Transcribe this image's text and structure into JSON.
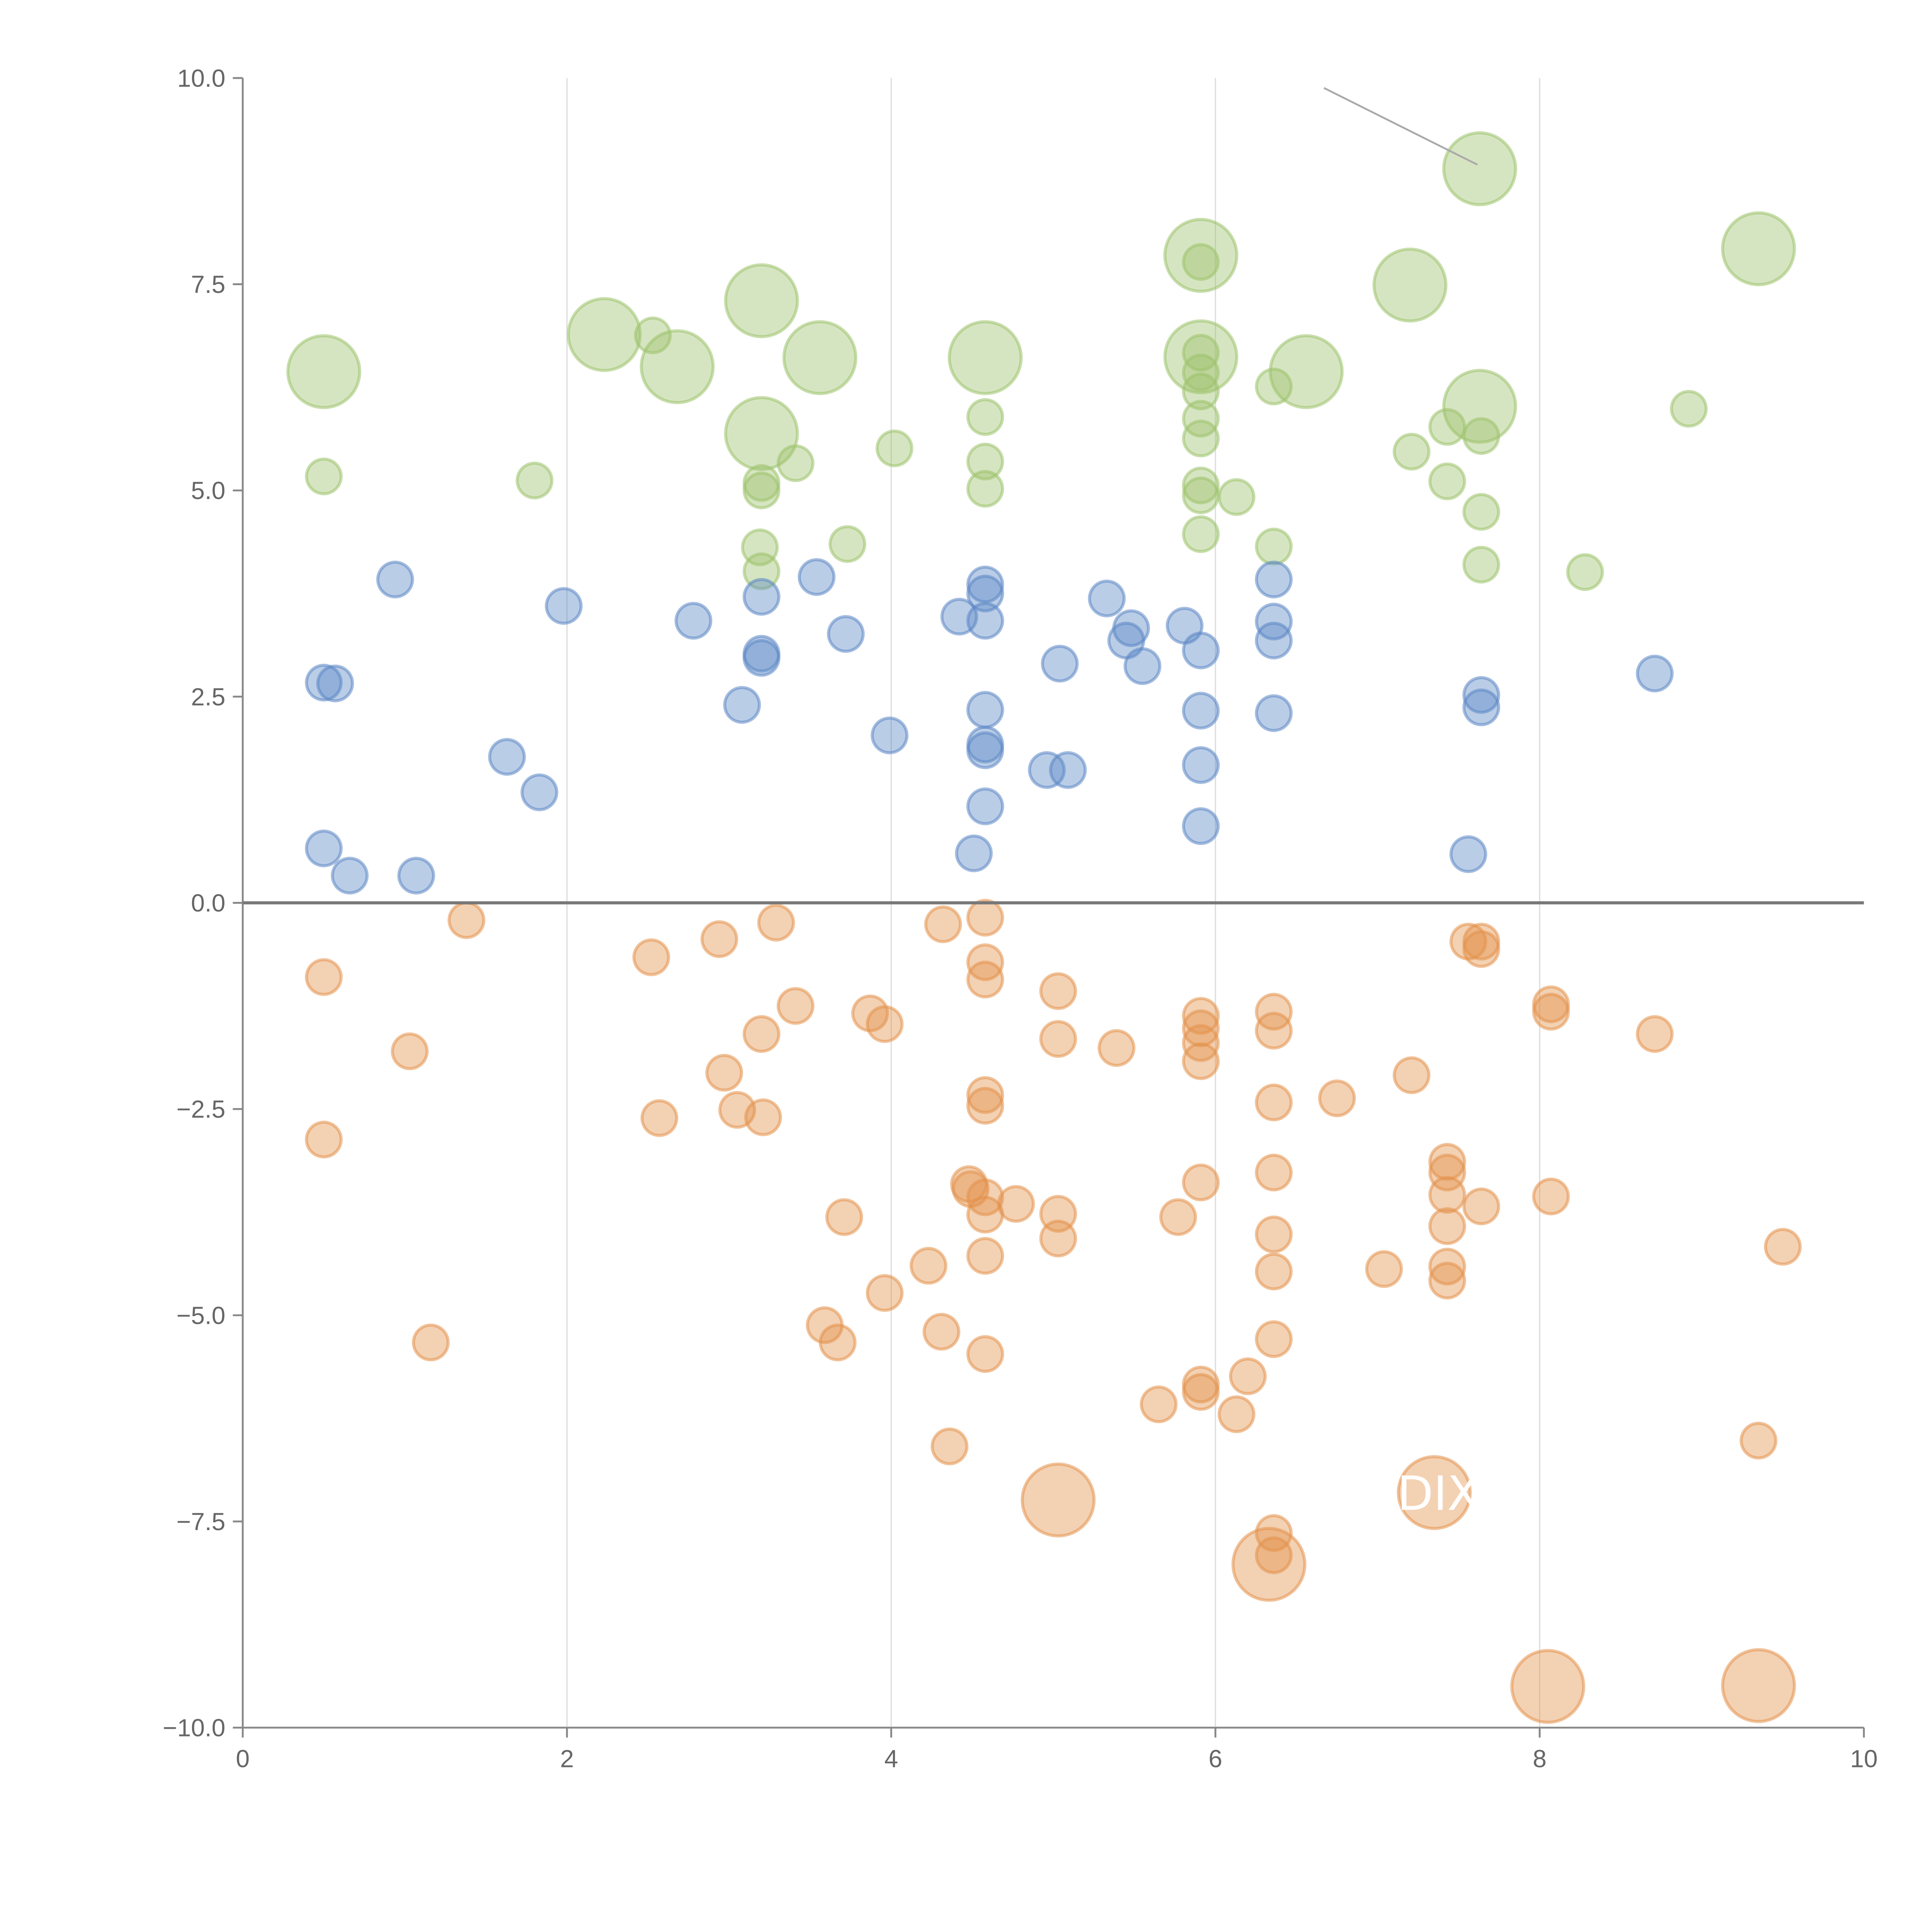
{
  "chart_data": {
    "type": "scatter",
    "title": "",
    "xlabel": "",
    "ylabel": "",
    "xlim": [
      0,
      10
    ],
    "ylim": [
      -10,
      10
    ],
    "xticks": [
      "0",
      "2",
      "4",
      "6",
      "8",
      "10"
    ],
    "yticks": [
      "10.0",
      "7.5",
      "5.0",
      "2.5",
      "0.0",
      "−2.5",
      "−5.0",
      "−7.5",
      "−10.0"
    ],
    "grid": "vertical",
    "legend": "none",
    "annotations": [
      {
        "text": "DIX",
        "x": 7.35,
        "y": -7.15
      }
    ],
    "series": [
      {
        "name": "green",
        "color": "#9dc26b",
        "points": [
          [
            0.5,
            6.44,
            2
          ],
          [
            2.23,
            6.89,
            2
          ],
          [
            2.68,
            6.5,
            2
          ],
          [
            3.2,
            7.3,
            2
          ],
          [
            3.2,
            5.69,
            2
          ],
          [
            3.56,
            6.61,
            2
          ],
          [
            4.58,
            6.61,
            2
          ],
          [
            5.91,
            7.85,
            2
          ],
          [
            5.91,
            6.62,
            2
          ],
          [
            6.56,
            6.44,
            2
          ],
          [
            7.2,
            7.49,
            2
          ],
          [
            7.63,
            8.9,
            2
          ],
          [
            7.63,
            6.02,
            2
          ],
          [
            9.35,
            7.93,
            2
          ],
          [
            0.5,
            5.17,
            1
          ],
          [
            1.8,
            5.12,
            1
          ],
          [
            2.53,
            6.88,
            1
          ],
          [
            3.2,
            5.09,
            1
          ],
          [
            3.2,
            5.0,
            1
          ],
          [
            3.41,
            5.33,
            1
          ],
          [
            3.19,
            4.31,
            1
          ],
          [
            3.2,
            4.02,
            1
          ],
          [
            3.73,
            4.35,
            1
          ],
          [
            4.02,
            5.51,
            1
          ],
          [
            4.58,
            5.89,
            1
          ],
          [
            4.58,
            5.35,
            1
          ],
          [
            4.58,
            5.02,
            1
          ],
          [
            5.91,
            7.77,
            1
          ],
          [
            5.91,
            6.67,
            1
          ],
          [
            5.91,
            6.43,
            1
          ],
          [
            5.91,
            6.2,
            1
          ],
          [
            5.91,
            5.87,
            1
          ],
          [
            5.91,
            5.63,
            1
          ],
          [
            5.91,
            5.06,
            1
          ],
          [
            5.91,
            4.94,
            1
          ],
          [
            6.13,
            4.92,
            1
          ],
          [
            5.91,
            4.47,
            1
          ],
          [
            6.36,
            6.26,
            1
          ],
          [
            6.36,
            4.32,
            1
          ],
          [
            7.21,
            5.47,
            1
          ],
          [
            7.43,
            5.77,
            1
          ],
          [
            7.43,
            5.11,
            1
          ],
          [
            7.64,
            5.66,
            1
          ],
          [
            7.64,
            4.74,
            1
          ],
          [
            7.64,
            4.1,
            1
          ],
          [
            8.28,
            4.01,
            1
          ],
          [
            8.92,
            5.99,
            1
          ]
        ]
      },
      {
        "name": "blue",
        "color": "#5b87c5",
        "points": [
          [
            0.94,
            3.92,
            1
          ],
          [
            1.98,
            3.6,
            1
          ],
          [
            0.5,
            2.67,
            1
          ],
          [
            0.57,
            2.66,
            1
          ],
          [
            1.63,
            1.77,
            1
          ],
          [
            1.83,
            1.34,
            1
          ],
          [
            0.5,
            0.66,
            1
          ],
          [
            0.66,
            0.33,
            1
          ],
          [
            1.07,
            0.33,
            1
          ],
          [
            2.78,
            3.42,
            1
          ],
          [
            3.08,
            2.4,
            1
          ],
          [
            3.2,
            3.71,
            1
          ],
          [
            3.2,
            3.02,
            1
          ],
          [
            3.2,
            2.97,
            1
          ],
          [
            3.54,
            3.95,
            1
          ],
          [
            3.72,
            3.26,
            1
          ],
          [
            3.99,
            2.03,
            1
          ],
          [
            4.42,
            3.47,
            1
          ],
          [
            4.58,
            3.86,
            1
          ],
          [
            4.58,
            3.75,
            1
          ],
          [
            4.58,
            3.42,
            1
          ],
          [
            4.58,
            2.34,
            1
          ],
          [
            4.58,
            1.92,
            1
          ],
          [
            4.58,
            1.85,
            1
          ],
          [
            4.58,
            1.17,
            1
          ],
          [
            4.51,
            0.6,
            1
          ],
          [
            4.96,
            1.61,
            1
          ],
          [
            5.09,
            1.61,
            1
          ],
          [
            5.04,
            2.9,
            1
          ],
          [
            5.33,
            3.69,
            1
          ],
          [
            5.48,
            3.33,
            1
          ],
          [
            5.45,
            3.18,
            1
          ],
          [
            5.55,
            2.87,
            1
          ],
          [
            5.81,
            3.36,
            1
          ],
          [
            5.91,
            3.06,
            1
          ],
          [
            5.91,
            2.33,
            1
          ],
          [
            5.91,
            1.67,
            1
          ],
          [
            5.91,
            0.93,
            1
          ],
          [
            6.36,
            3.92,
            1
          ],
          [
            6.36,
            3.41,
            1
          ],
          [
            6.36,
            3.18,
            1
          ],
          [
            6.36,
            2.3,
            1
          ],
          [
            7.64,
            2.52,
            1
          ],
          [
            7.64,
            2.37,
            1
          ],
          [
            7.56,
            0.59,
            1
          ],
          [
            8.71,
            2.78,
            1
          ]
        ]
      },
      {
        "name": "orange",
        "color": "#e3924a",
        "points": [
          [
            0.5,
            -0.9,
            1
          ],
          [
            1.38,
            -0.21,
            1
          ],
          [
            1.03,
            -1.8,
            1
          ],
          [
            0.5,
            -2.87,
            1
          ],
          [
            1.16,
            -5.33,
            1
          ],
          [
            2.52,
            -0.66,
            1
          ],
          [
            2.94,
            -0.44,
            1
          ],
          [
            3.29,
            -0.24,
            1
          ],
          [
            3.41,
            -1.25,
            1
          ],
          [
            3.2,
            -1.59,
            1
          ],
          [
            2.97,
            -2.06,
            1
          ],
          [
            3.05,
            -2.51,
            1
          ],
          [
            3.21,
            -2.6,
            1
          ],
          [
            2.57,
            -2.61,
            1
          ],
          [
            3.87,
            -1.34,
            1
          ],
          [
            3.96,
            -1.47,
            1
          ],
          [
            3.71,
            -3.81,
            1
          ],
          [
            3.59,
            -5.12,
            1
          ],
          [
            3.67,
            -5.33,
            1
          ],
          [
            3.96,
            -4.73,
            1
          ],
          [
            4.23,
            -4.4,
            1
          ],
          [
            4.31,
            -5.2,
            1
          ],
          [
            4.36,
            -6.59,
            1
          ],
          [
            4.32,
            -0.26,
            1
          ],
          [
            4.58,
            -0.18,
            1
          ],
          [
            4.58,
            -0.72,
            1
          ],
          [
            4.58,
            -0.93,
            1
          ],
          [
            4.58,
            -2.33,
            1
          ],
          [
            4.58,
            -2.46,
            1
          ],
          [
            4.48,
            -3.41,
            1
          ],
          [
            4.49,
            -3.47,
            1
          ],
          [
            4.58,
            -3.57,
            1
          ],
          [
            4.58,
            -3.78,
            1
          ],
          [
            4.77,
            -3.65,
            1
          ],
          [
            4.58,
            -4.28,
            1
          ],
          [
            4.58,
            -5.47,
            1
          ],
          [
            5.03,
            -1.07,
            1
          ],
          [
            5.03,
            -1.65,
            1
          ],
          [
            5.03,
            -3.77,
            1
          ],
          [
            5.03,
            -4.07,
            1
          ],
          [
            5.39,
            -1.76,
            1
          ],
          [
            5.77,
            -3.81,
            1
          ],
          [
            5.65,
            -6.08,
            1
          ],
          [
            5.91,
            -1.37,
            1
          ],
          [
            5.91,
            -1.52,
            1
          ],
          [
            5.91,
            -1.7,
            1
          ],
          [
            5.91,
            -1.92,
            1
          ],
          [
            5.91,
            -3.39,
            1
          ],
          [
            5.91,
            -5.84,
            1
          ],
          [
            5.91,
            -5.93,
            1
          ],
          [
            6.13,
            -6.2,
            1
          ],
          [
            6.2,
            -5.74,
            1
          ],
          [
            6.36,
            -1.32,
            1
          ],
          [
            6.36,
            -1.55,
            1
          ],
          [
            6.36,
            -2.42,
            1
          ],
          [
            6.36,
            -3.27,
            1
          ],
          [
            6.36,
            -4.02,
            1
          ],
          [
            6.36,
            -4.47,
            1
          ],
          [
            6.36,
            -5.29,
            1
          ],
          [
            6.36,
            -7.64,
            1
          ],
          [
            6.36,
            -7.91,
            1
          ],
          [
            6.75,
            -2.37,
            1
          ],
          [
            7.04,
            -4.44,
            1
          ],
          [
            7.21,
            -2.09,
            1
          ],
          [
            7.43,
            -3.14,
            1
          ],
          [
            7.43,
            -3.27,
            1
          ],
          [
            7.43,
            -3.54,
            1
          ],
          [
            7.43,
            -3.92,
            1
          ],
          [
            7.43,
            -4.41,
            1
          ],
          [
            7.43,
            -4.58,
            1
          ],
          [
            7.56,
            -0.47,
            1
          ],
          [
            7.64,
            -0.47,
            1
          ],
          [
            7.64,
            -0.56,
            1
          ],
          [
            7.64,
            -3.68,
            1
          ],
          [
            8.07,
            -1.23,
            1
          ],
          [
            8.07,
            -1.32,
            1
          ],
          [
            8.07,
            -3.56,
            1
          ],
          [
            8.71,
            -1.59,
            1
          ],
          [
            9.5,
            -4.17,
            1
          ],
          [
            9.35,
            -6.52,
            1
          ],
          [
            5.03,
            -7.24,
            2
          ],
          [
            7.35,
            -7.15,
            2
          ],
          [
            6.33,
            -8.02,
            2
          ],
          [
            8.05,
            -9.5,
            2
          ],
          [
            9.35,
            -9.49,
            2
          ]
        ]
      }
    ]
  }
}
